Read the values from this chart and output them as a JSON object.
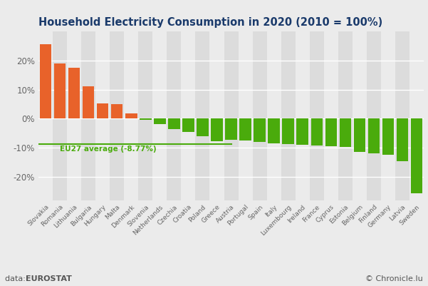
{
  "title": "Household Electricity Consumption in 2020 (2010 = 100%)",
  "categories": [
    "Slovakia",
    "Romania",
    "Lithuania",
    "Bulgaria",
    "Hungary",
    "Malta",
    "Denmark",
    "Slovenia",
    "Netherlands",
    "Czechia",
    "Croatia",
    "Poland",
    "Greece",
    "Austria",
    "Portugal",
    "Spain",
    "Italy",
    "Luxembourg",
    "Ireland",
    "France",
    "Cyprus",
    "Estonia",
    "Belgium",
    "Finland",
    "Germany",
    "Latvia",
    "Sweden"
  ],
  "values": [
    25.5,
    19.0,
    17.5,
    11.2,
    5.3,
    5.0,
    1.8,
    -0.3,
    -1.8,
    -3.5,
    -4.5,
    -6.0,
    -7.8,
    -7.2,
    -7.5,
    -8.0,
    -8.5,
    -8.8,
    -9.0,
    -9.2,
    -9.5,
    -9.8,
    -11.5,
    -11.8,
    -12.5,
    -14.5,
    -25.5
  ],
  "eu27_avg": -8.77,
  "positive_color": "#e8622a",
  "negative_color": "#4aab0c",
  "eu27_line_color": "#4aab0c",
  "eu27_label": "EU27 average (-8.77%)",
  "bg_light": "#ebebeb",
  "bg_dark": "#dcdcdc",
  "title_color": "#1a3a6b",
  "tick_color": "#666666",
  "footer_left_plain": "data: ",
  "footer_left_bold": "EUROSTAT",
  "footer_right": "© Chronicle.lu",
  "ylim": [
    -28,
    30
  ],
  "yticks": [
    -20,
    -10,
    0,
    10,
    20
  ]
}
